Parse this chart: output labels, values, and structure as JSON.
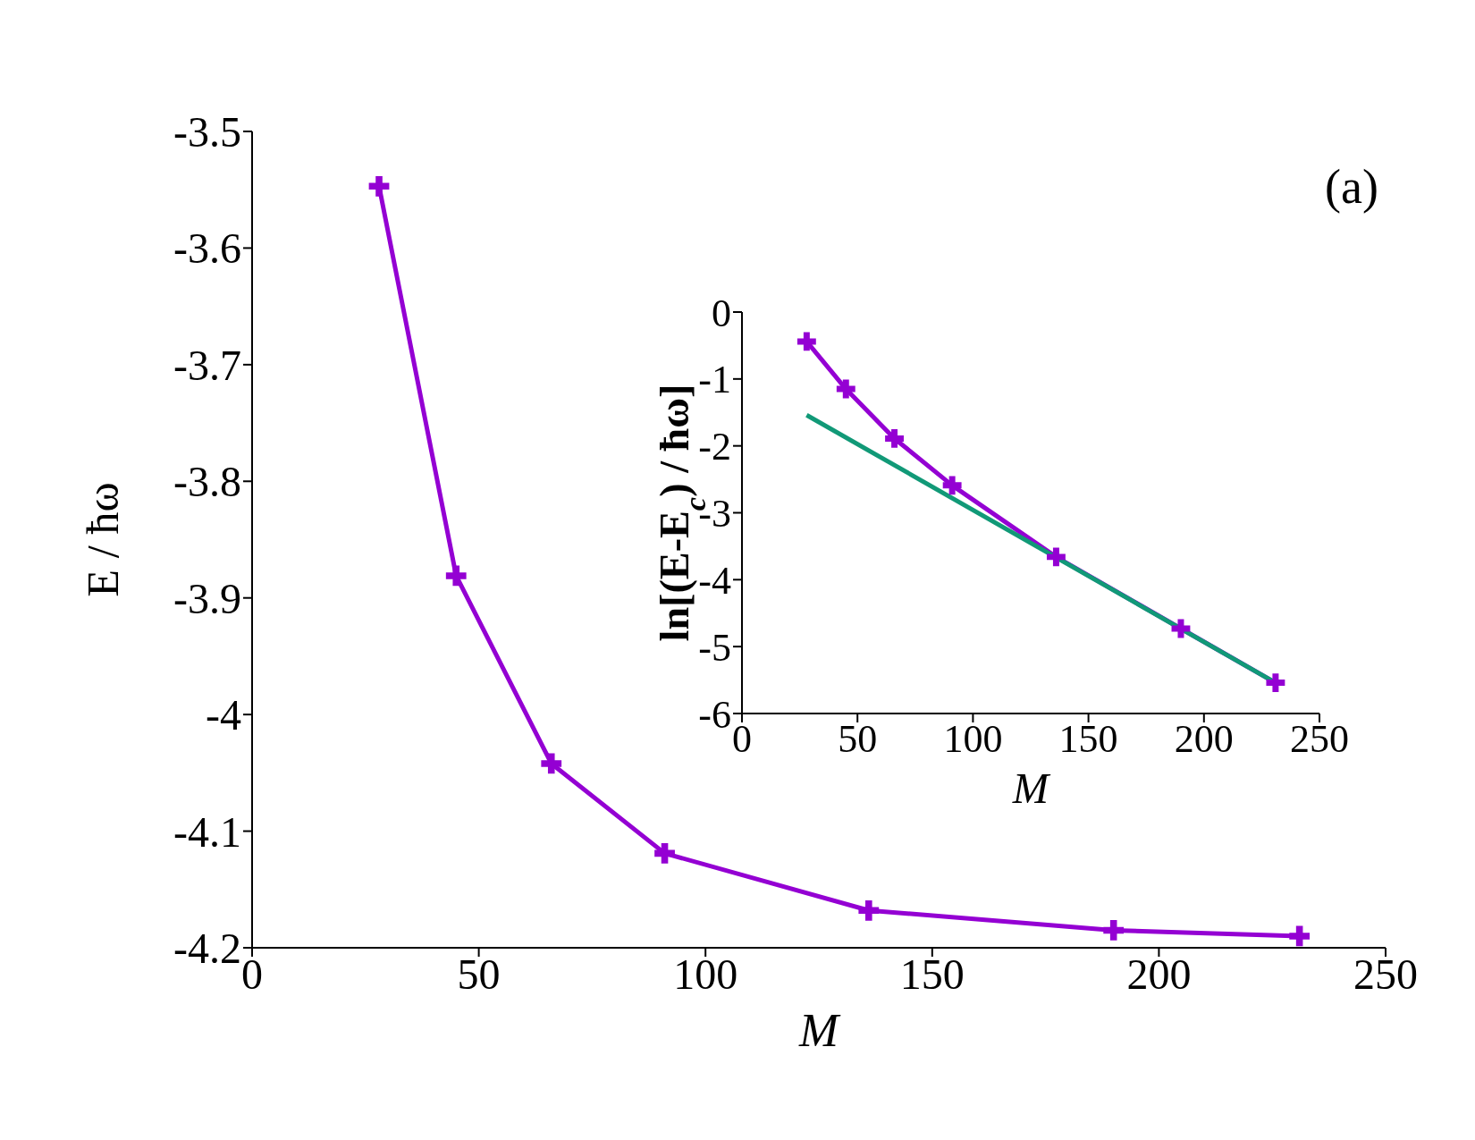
{
  "chart_data": [
    {
      "type": "line",
      "xlabel": "M",
      "ylabel": "E / ħω",
      "xlim": [
        0,
        250
      ],
      "xticks": [
        0,
        50,
        100,
        150,
        200,
        250
      ],
      "ylim": [
        -4.2,
        -3.5
      ],
      "yticks": [
        -4.2,
        -4.1,
        -4,
        -3.9,
        -3.8,
        -3.7,
        -3.6,
        -3.5
      ],
      "marker": "cross",
      "annotations": [
        "(a)"
      ],
      "series": [
        {
          "color": "#9400d3",
          "x": [
            28,
            45,
            66,
            91,
            136,
            190,
            231
          ],
          "values": [
            -3.547,
            -3.881,
            -4.042,
            -4.119,
            -4.168,
            -4.185,
            -4.19
          ]
        }
      ]
    },
    {
      "type": "line",
      "xlabel": "M",
      "ylabel": "ln[(E-E$_{c}$) / ħω]",
      "xlim": [
        0,
        250
      ],
      "xticks": [
        0,
        50,
        100,
        150,
        200,
        250
      ],
      "ylim": [
        -6,
        0
      ],
      "yticks": [
        -6,
        -5,
        -4,
        -3,
        -2,
        -1,
        0
      ],
      "marker": "cross",
      "series": [
        {
          "color": "#9400d3",
          "x": [
            28,
            45,
            66,
            91,
            136,
            190,
            231
          ],
          "values": [
            -0.44,
            -1.15,
            -1.89,
            -2.59,
            -3.66,
            -4.73,
            -5.54
          ]
        },
        {
          "color": "#119977",
          "marker": "none",
          "x": [
            28,
            231
          ],
          "values": [
            -1.54,
            -5.54
          ]
        }
      ]
    }
  ]
}
